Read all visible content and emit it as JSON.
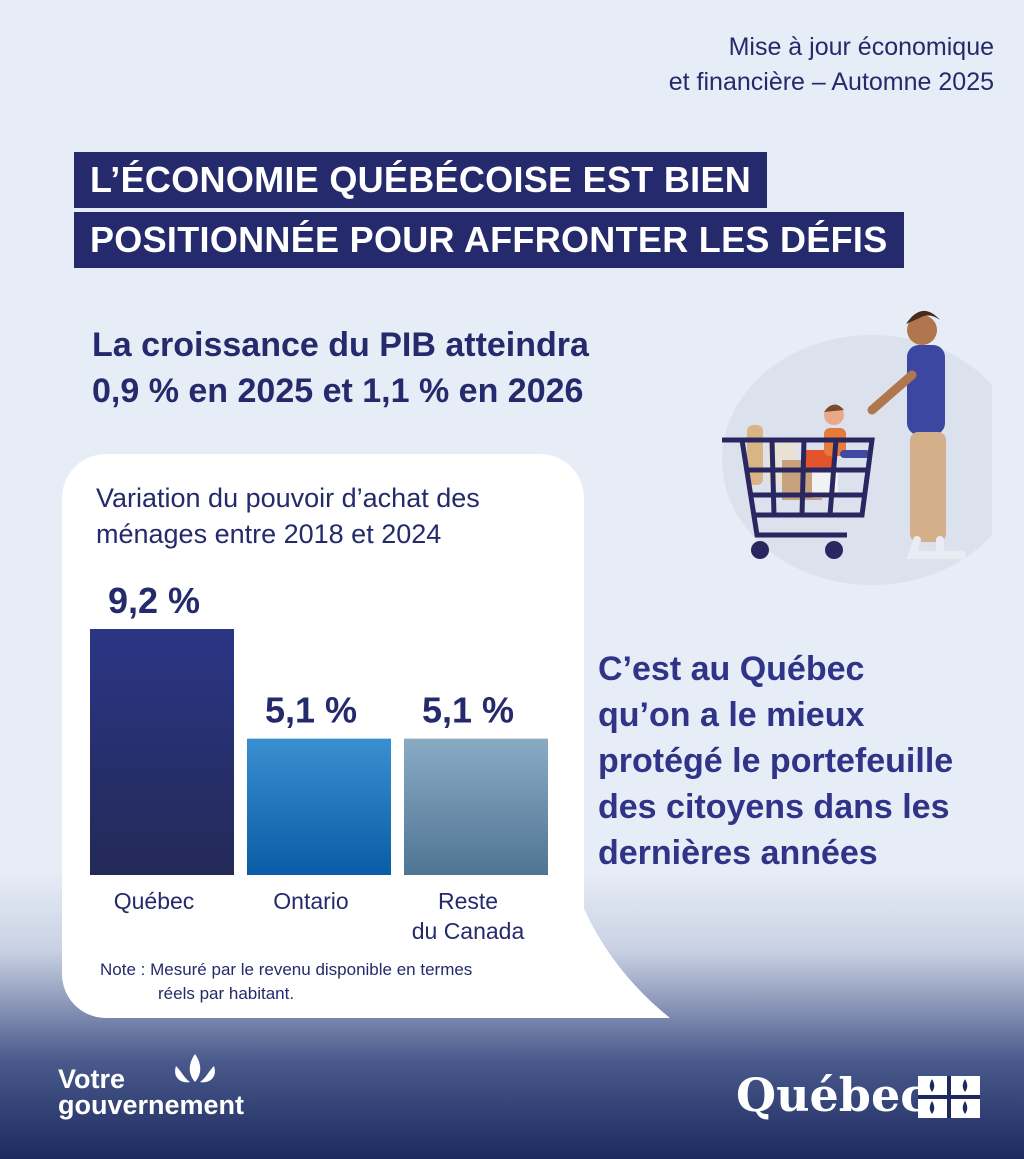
{
  "header": {
    "subtitle_line1": "Mise à jour économique",
    "subtitle_line2": "et financière – Automne 2025",
    "headline_line1": "L’ÉCONOMIE QUÉBÉCOISE EST BIEN",
    "headline_line2": "POSITIONNÉE POUR AFFRONTER LES DÉFIS"
  },
  "lead": {
    "line1": "La croissance du PIB atteindra",
    "line2": "0,9 % en 2025 et 1,1 % en 2026"
  },
  "chart_data": {
    "type": "bar",
    "title": "Variation du pouvoir d’achat des ménages entre 2018 et 2024",
    "title_line1": "Variation du pouvoir d’achat des",
    "title_line2": "ménages entre 2018 et 2024",
    "categories": [
      "Québec",
      "Ontario",
      "Reste du Canada"
    ],
    "category_lines": [
      [
        "Québec"
      ],
      [
        "Ontario"
      ],
      [
        "Reste",
        "du Canada"
      ]
    ],
    "values": [
      9.2,
      5.1,
      5.1
    ],
    "value_labels": [
      "9,2 %",
      "5,1 %",
      "5,1 %"
    ],
    "unit": "%",
    "ylim": [
      0,
      9.2
    ],
    "colors": [
      [
        "#2b3585",
        "#232a57"
      ],
      [
        "#3a8fd0",
        "#0a5ca6"
      ],
      [
        "#8aabc4",
        "#4f7595"
      ]
    ],
    "note_line1": "Note : Mesuré par le revenu disponible en termes",
    "note_line2": "réels par habitant."
  },
  "right_text": {
    "line1": "C’est au Québec",
    "line2": "qu’on a le mieux",
    "line3": "protégé le portefeuille",
    "line4": "des citoyens dans les",
    "line5": "dernières années"
  },
  "footer": {
    "left_logo_line1": "Votre",
    "left_logo_line2": "gouvernement",
    "right_logo": "Québec"
  },
  "icons": [
    "fleur-de-lis-icon",
    "quebec-flag-icon",
    "shopping-cart-family-illustration"
  ]
}
